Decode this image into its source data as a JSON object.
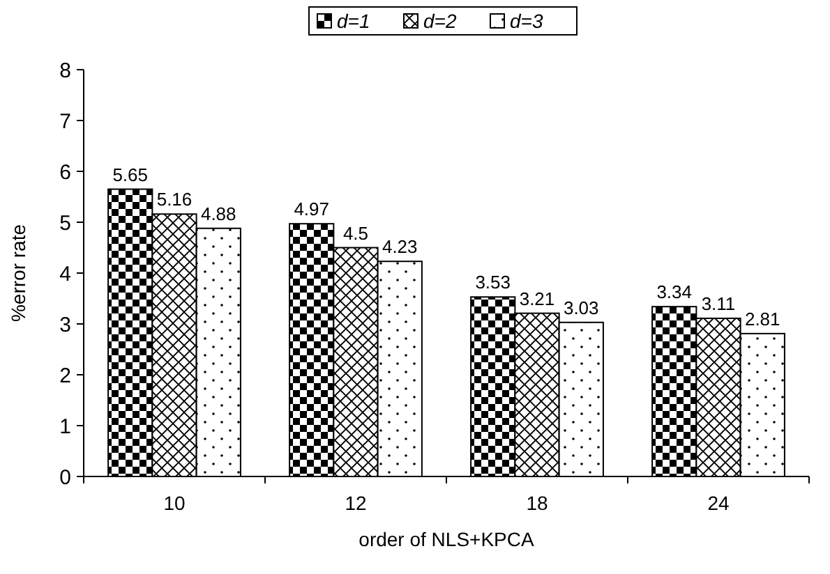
{
  "chart_data": {
    "type": "bar",
    "xlabel": "order of NLS+KPCA",
    "ylabel": "%error rate",
    "categories": [
      "10",
      "12",
      "18",
      "24"
    ],
    "series": [
      {
        "name": "d=1",
        "color": "#000000",
        "values": [
          5.65,
          4.97,
          3.53,
          3.34
        ]
      },
      {
        "name": "d=2",
        "color": "#000000",
        "values": [
          5.16,
          4.5,
          3.21,
          3.11
        ]
      },
      {
        "name": "d=3",
        "color": "#000000",
        "values": [
          4.88,
          4.23,
          3.03,
          2.81
        ]
      }
    ],
    "ylim": [
      0,
      8
    ],
    "yticks": [
      0,
      1,
      2,
      3,
      4,
      5,
      6,
      7,
      8
    ],
    "data_labels": true,
    "legend": "top",
    "grid": false
  }
}
